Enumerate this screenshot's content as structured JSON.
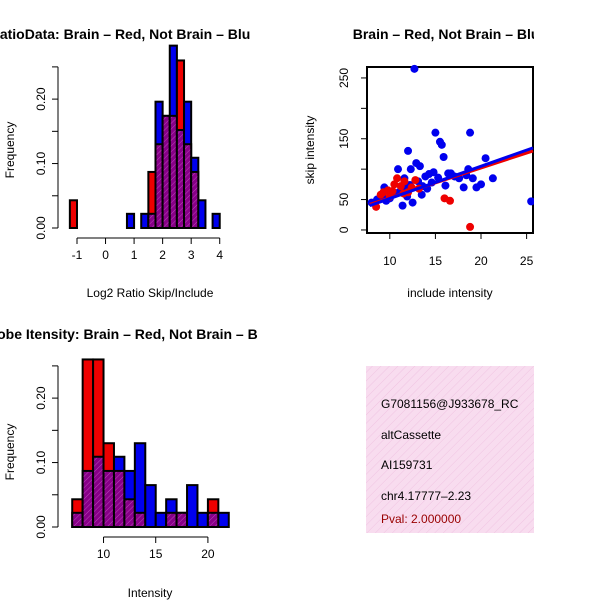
{
  "colors": {
    "red": "#ee0000",
    "blue": "#0000ee",
    "overlap": "#880088",
    "info_bg": "#f6d8ec",
    "pval": "#990000"
  },
  "chart_data": [
    {
      "type": "bar",
      "title": "RatioData: Brain – Red, Not Brain – Blu",
      "xlabel": "Log2 Ratio Skip/Include",
      "ylabel": "Frequency",
      "xlim": [
        -1.35,
        4.5
      ],
      "ylim": [
        0,
        0.27
      ],
      "xticks": [
        "-1",
        "0",
        "1",
        "2",
        "3",
        "4"
      ],
      "yticks": [
        "0.00",
        "0.10",
        "0.20"
      ],
      "bin_width": 0.25,
      "bins": [
        {
          "x0": -1.25,
          "red": 0.043,
          "blue": 0
        },
        {
          "x0": 0.75,
          "red": 0,
          "blue": 0.022
        },
        {
          "x0": 1.25,
          "red": 0,
          "blue": 0.022
        },
        {
          "x0": 1.5,
          "red": 0.087,
          "blue": 0.022
        },
        {
          "x0": 1.75,
          "red": 0.13,
          "blue": 0.196
        },
        {
          "x0": 2.0,
          "red": 0.174,
          "blue": 0.174
        },
        {
          "x0": 2.25,
          "red": 0.174,
          "blue": 0.283
        },
        {
          "x0": 2.5,
          "red": 0.26,
          "blue": 0.152
        },
        {
          "x0": 2.75,
          "red": 0.13,
          "blue": 0.196
        },
        {
          "x0": 3.0,
          "red": 0.087,
          "blue": 0.109
        },
        {
          "x0": 3.25,
          "red": 0,
          "blue": 0.043
        },
        {
          "x0": 3.75,
          "red": 0,
          "blue": 0.022
        }
      ]
    },
    {
      "type": "scatter",
      "title": "Brain – Red, Not Brain – Blue",
      "xlabel": "include intensity",
      "ylabel": "skip intensity",
      "xlim": [
        7.5,
        25.7
      ],
      "ylim": [
        -5,
        268
      ],
      "xticks": [
        "10",
        "15",
        "20",
        "25"
      ],
      "yticks": [
        "0",
        "50",
        "150",
        "250"
      ],
      "red_points": [
        [
          8.5,
          38
        ],
        [
          9,
          58
        ],
        [
          9.3,
          62
        ],
        [
          9.8,
          65
        ],
        [
          10.3,
          64
        ],
        [
          10.5,
          75
        ],
        [
          10.8,
          85
        ],
        [
          11.2,
          72
        ],
        [
          11.6,
          80
        ],
        [
          12,
          62
        ],
        [
          12.4,
          70
        ],
        [
          12.8,
          82
        ],
        [
          13.2,
          68
        ],
        [
          16,
          52
        ],
        [
          16.6,
          48
        ],
        [
          18.8,
          5
        ],
        [
          10,
          55
        ],
        [
          11.5,
          60
        ]
      ],
      "blue_points": [
        [
          8,
          45
        ],
        [
          8.6,
          50
        ],
        [
          9.2,
          55
        ],
        [
          9.6,
          48
        ],
        [
          10,
          52
        ],
        [
          10.3,
          58
        ],
        [
          10.6,
          60
        ],
        [
          11,
          62
        ],
        [
          11.3,
          70
        ],
        [
          11.4,
          40
        ],
        [
          11.6,
          85
        ],
        [
          11.9,
          55
        ],
        [
          12,
          130
        ],
        [
          12.2,
          74
        ],
        [
          12.5,
          45
        ],
        [
          12.7,
          265
        ],
        [
          12.9,
          110
        ],
        [
          13.1,
          80
        ],
        [
          13.3,
          105
        ],
        [
          13.5,
          58
        ],
        [
          13.9,
          88
        ],
        [
          14.1,
          68
        ],
        [
          14.3,
          92
        ],
        [
          14.6,
          78
        ],
        [
          15,
          160
        ],
        [
          15.3,
          86
        ],
        [
          15.5,
          145
        ],
        [
          15.7,
          140
        ],
        [
          15.9,
          120
        ],
        [
          16.1,
          73
        ],
        [
          16.4,
          93
        ],
        [
          16.7,
          93
        ],
        [
          17.1,
          88
        ],
        [
          17.6,
          85
        ],
        [
          18.1,
          70
        ],
        [
          18.4,
          90
        ],
        [
          18.6,
          100
        ],
        [
          18.8,
          160
        ],
        [
          19.1,
          85
        ],
        [
          19.5,
          70
        ],
        [
          20,
          75
        ],
        [
          20.5,
          118
        ],
        [
          21.3,
          85
        ],
        [
          25.5,
          47
        ],
        [
          12.3,
          100
        ],
        [
          14.8,
          95
        ],
        [
          10.9,
          100
        ],
        [
          9.4,
          70
        ],
        [
          13.6,
          72
        ],
        [
          11.8,
          70
        ]
      ],
      "red_fit": [
        [
          7.8,
          42
        ],
        [
          25.7,
          130
        ]
      ],
      "blue_fit": [
        [
          7.8,
          40
        ],
        [
          25.7,
          135
        ]
      ]
    },
    {
      "type": "bar",
      "title": "Probe Itensity: Brain – Red, Not Brain – B",
      "xlabel": "Intensity",
      "ylabel": "Frequency",
      "xlim": [
        6.5,
        22.5
      ],
      "ylim": [
        0,
        0.27
      ],
      "xticks": [
        "10",
        "15",
        "20"
      ],
      "yticks": [
        "0.00",
        "0.10",
        "0.20"
      ],
      "bin_width": 1,
      "bins": [
        {
          "x0": 7,
          "red": 0.043,
          "blue": 0.022
        },
        {
          "x0": 8,
          "red": 0.26,
          "blue": 0.087
        },
        {
          "x0": 9,
          "red": 0.26,
          "blue": 0.109
        },
        {
          "x0": 10,
          "red": 0.13,
          "blue": 0.087
        },
        {
          "x0": 11,
          "red": 0.087,
          "blue": 0.109
        },
        {
          "x0": 12,
          "red": 0.043,
          "blue": 0.087
        },
        {
          "x0": 13,
          "red": 0.022,
          "blue": 0.13
        },
        {
          "x0": 14,
          "red": 0,
          "blue": 0.065
        },
        {
          "x0": 15,
          "red": 0,
          "blue": 0.022
        },
        {
          "x0": 16,
          "red": 0.022,
          "blue": 0.043
        },
        {
          "x0": 17,
          "red": 0.022,
          "blue": 0.022
        },
        {
          "x0": 18,
          "red": 0,
          "blue": 0.065
        },
        {
          "x0": 19,
          "red": 0,
          "blue": 0.022
        },
        {
          "x0": 20,
          "red": 0.043,
          "blue": 0.022
        },
        {
          "x0": 21,
          "red": 0,
          "blue": 0.022
        }
      ]
    }
  ],
  "info": {
    "id": "G7081156@J933678_RC",
    "event": "altCassette",
    "accession": "AI159731",
    "location": "chr4.17777–2.23",
    "pval": "Pval: 2.000000"
  }
}
